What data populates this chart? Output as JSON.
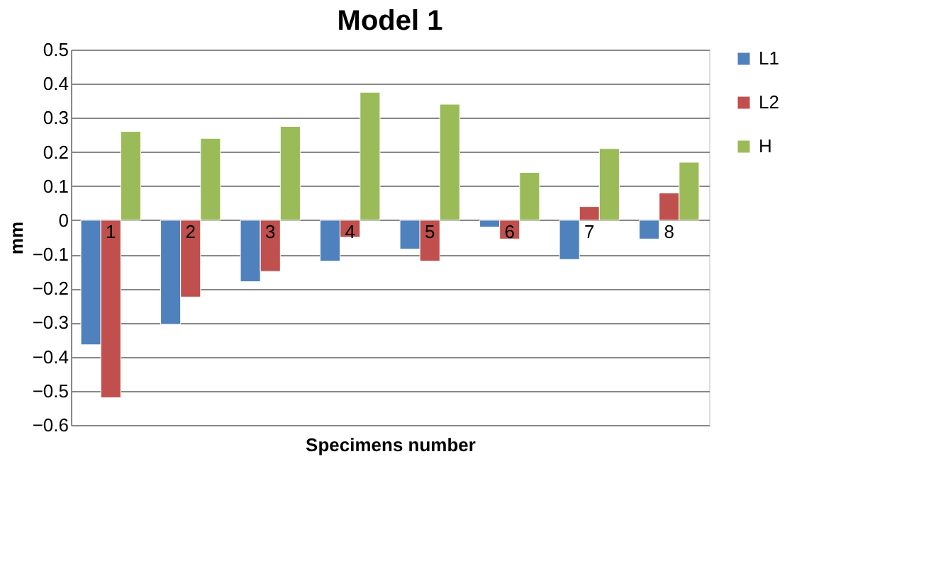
{
  "chart_data": {
    "type": "bar",
    "title": "Model 1",
    "xlabel": "Specimens number",
    "ylabel": "mm",
    "categories": [
      "1",
      "2",
      "3",
      "4",
      "5",
      "6",
      "7",
      "8"
    ],
    "series": [
      {
        "name": "L1",
        "color": "#4f81bd",
        "values": [
          -0.365,
          -0.305,
          -0.18,
          -0.12,
          -0.085,
          -0.02,
          -0.115,
          -0.055
        ]
      },
      {
        "name": "L2",
        "color": "#c0504d",
        "values": [
          -0.52,
          -0.225,
          -0.15,
          -0.05,
          -0.12,
          -0.055,
          0.04,
          0.08
        ]
      },
      {
        "name": "H",
        "color": "#9bbb59",
        "values": [
          0.26,
          0.24,
          0.275,
          0.375,
          0.34,
          0.14,
          0.21,
          0.17
        ]
      }
    ],
    "ylim": [
      -0.6,
      0.5
    ],
    "yticks": [
      -0.6,
      -0.5,
      -0.4,
      -0.3,
      -0.2,
      -0.1,
      0,
      0.1,
      0.2,
      0.3,
      0.4,
      0.5
    ],
    "grid": "y",
    "legend": "right"
  }
}
